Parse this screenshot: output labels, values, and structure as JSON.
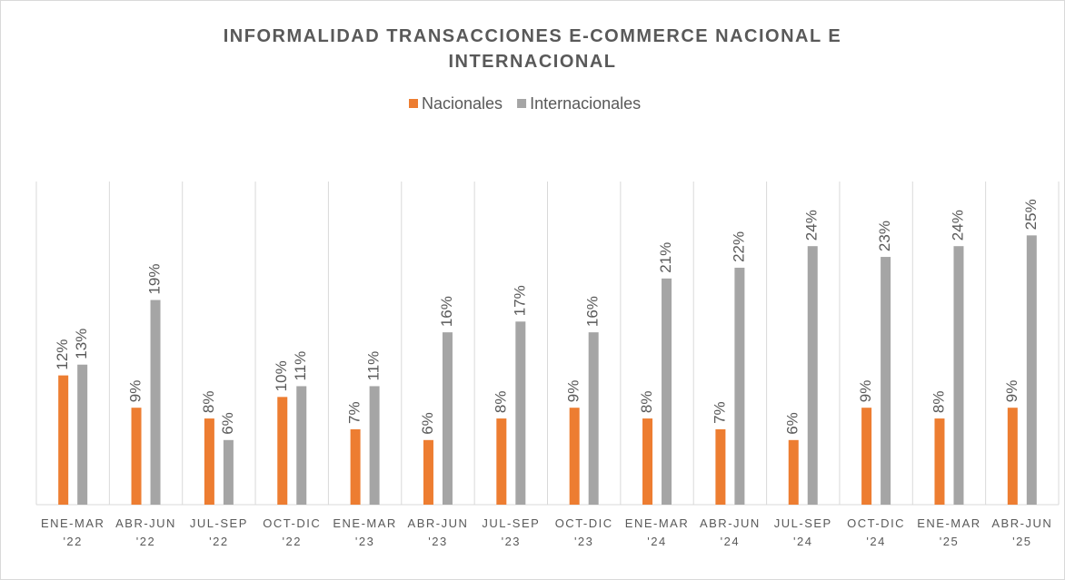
{
  "chart_data": {
    "type": "bar",
    "title": "INFORMALIDAD TRANSACCIONES E-COMMERCE NACIONAL E INTERNACIONAL",
    "categories": [
      "ENE-MAR '22",
      "ABR-JUN '22",
      "JUL-SEP '22",
      "OCT-DIC '22",
      "ENE-MAR '23",
      "ABR-JUN '23",
      "JUL-SEP '23",
      "OCT-DIC '23",
      "ENE-MAR '24",
      "ABR-JUN '24",
      "JUL-SEP '24",
      "OCT-DIC '24",
      "ENE-MAR '25",
      "ABR-JUN '25"
    ],
    "series": [
      {
        "name": "Nacionales",
        "color": "#ed7d31",
        "values": [
          12,
          9,
          8,
          10,
          7,
          6,
          8,
          9,
          8,
          7,
          6,
          9,
          8,
          9
        ],
        "value_labels": [
          "12%",
          "9%",
          "8%",
          "10%",
          "7%",
          "6%",
          "8%",
          "9%",
          "8%",
          "7%",
          "6%",
          "9%",
          "8%",
          "9%"
        ]
      },
      {
        "name": "Internacionales",
        "color": "#a5a5a5",
        "values": [
          13,
          19,
          6,
          11,
          11,
          16,
          17,
          16,
          21,
          22,
          24,
          23,
          24,
          25
        ],
        "value_labels": [
          "13%",
          "19%",
          "6%",
          "11%",
          "11%",
          "16%",
          "17%",
          "16%",
          "21%",
          "22%",
          "24%",
          "23%",
          "24%",
          "25%"
        ]
      }
    ],
    "legend": "top"
  }
}
